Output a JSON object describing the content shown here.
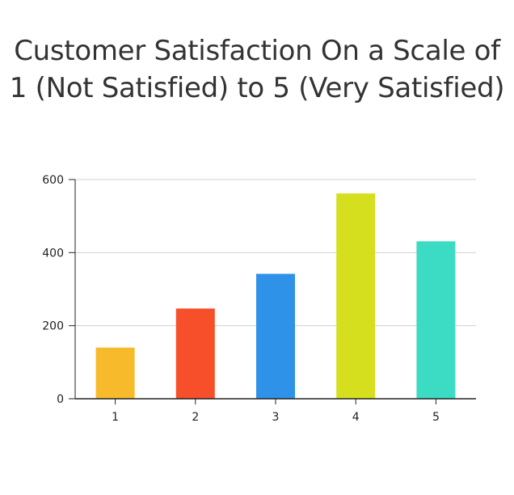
{
  "chart_data": {
    "type": "bar",
    "title_lines": [
      "Customer Satisfaction On a Scale of",
      "1 (Not Satisfied) to 5 (Very Satisfied)"
    ],
    "categories": [
      "1",
      "2",
      "3",
      "4",
      "5"
    ],
    "values": [
      140,
      247,
      342,
      562,
      431
    ],
    "colors": [
      "#F7BA2B",
      "#F64F2A",
      "#2E93E8",
      "#D5DF1E",
      "#3CDBC3"
    ],
    "xlabel": "",
    "ylabel": "",
    "ylim": [
      0,
      600
    ],
    "yticks": [
      "0",
      "200",
      "400",
      "600"
    ],
    "grid": true,
    "legend": false
  }
}
